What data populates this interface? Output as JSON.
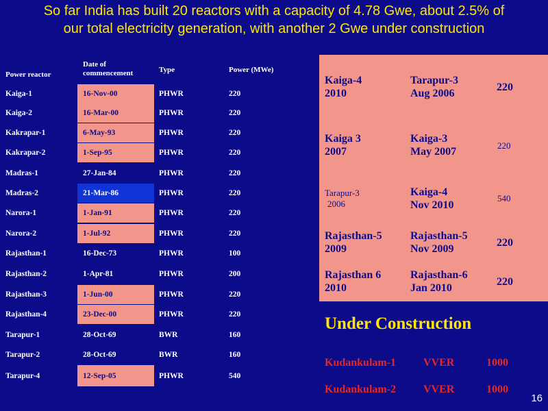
{
  "slide": {
    "title_line1": "So far India has built 20 reactors with a capacity of 4.78 Gwe, about 2.5% of",
    "title_line2": "our total electricity generation,  with another 2 Gwe under construction",
    "page_number": "16"
  },
  "table": {
    "headers": {
      "reactor": "Power reactor",
      "date_line1": "Date of",
      "date_line2": "commencement",
      "type": "Type",
      "power": "Power (MWe)"
    },
    "rows": [
      {
        "name": "Kaiga-1",
        "date": "16-Nov-00",
        "type": "PHWR",
        "power": "220",
        "highlight": "pink"
      },
      {
        "name": "Kaiga-2",
        "date": "16-Mar-00",
        "type": "PHWR",
        "power": "220",
        "highlight": "pink"
      },
      {
        "name": "Kakrapar-1",
        "date": "6-May-93",
        "type": "PHWR",
        "power": "220",
        "highlight": "pink"
      },
      {
        "name": "Kakrapar-2",
        "date": "1-Sep-95",
        "type": "PHWR",
        "power": "220",
        "highlight": "pink"
      },
      {
        "name": "Madras-1",
        "date": "27-Jan-84",
        "type": "PHWR",
        "power": "220",
        "highlight": "none"
      },
      {
        "name": "Madras-2",
        "date": "21-Mar-86",
        "type": "PHWR",
        "power": "220",
        "highlight": "blue"
      },
      {
        "name": "Narora-1",
        "date": "1-Jan-91",
        "type": "PHWR",
        "power": "220",
        "highlight": "pink"
      },
      {
        "name": "Narora-2",
        "date": "1-Jul-92",
        "type": "PHWR",
        "power": "220",
        "highlight": "pink"
      },
      {
        "name": "Rajasthan-1",
        "date": "16-Dec-73",
        "type": "PHWR",
        "power": "100",
        "highlight": "none"
      },
      {
        "name": "Rajasthan-2",
        "date": "1-Apr-81",
        "type": "PHWR",
        "power": "200",
        "highlight": "none"
      },
      {
        "name": "Rajasthan-3",
        "date": "1-Jun-00",
        "type": "PHWR",
        "power": "220",
        "highlight": "pink"
      },
      {
        "name": "Rajasthan-4",
        "date": "23-Dec-00",
        "type": "PHWR",
        "power": "220",
        "highlight": "pink"
      },
      {
        "name": "Tarapur-1",
        "date": "28-Oct-69",
        "type": "BWR",
        "power": "160",
        "highlight": "none"
      },
      {
        "name": "Tarapur-2",
        "date": "28-Oct-69",
        "type": "BWR",
        "power": "160",
        "highlight": "none"
      },
      {
        "name": "Tarapur-4",
        "date": "12-Sep-05",
        "type": "PHWR",
        "power": "540",
        "highlight": "pink"
      }
    ]
  },
  "panel": {
    "rows": [
      {
        "col1_a": "Kaiga-4",
        "col1_b": "2010",
        "col2_a": "Tarapur-3",
        "col2_b": "Aug 2006",
        "power": "220"
      },
      {
        "col1_a": "Kaiga 3",
        "col1_b": "2007",
        "col2_a": "Kaiga-3",
        "col2_b": "May 2007",
        "power": "220"
      },
      {
        "col1_a": "Tarapur-3",
        "col1_b": "2006",
        "col2_a": "Kaiga-4",
        "col2_b": "Nov 2010",
        "power": "540"
      },
      {
        "col1_a": "Rajasthan-5",
        "col1_b": "2009",
        "col2_a": "Rajasthan-5",
        "col2_b": "Nov 2009",
        "power": "220"
      },
      {
        "col1_a": "Rajasthan 6",
        "col1_b": "2010",
        "col2_a": "Rajasthan-6",
        "col2_b": "Jan  2010",
        "power": "220"
      }
    ]
  },
  "under_construction": {
    "title": "Under Construction",
    "items": [
      {
        "name": "Kudankulam-1",
        "type": "VVER",
        "power": "1000"
      },
      {
        "name": "Kudankulam-2",
        "type": "VVER",
        "power": "1000"
      }
    ]
  },
  "colors": {
    "background": "#0c0b8a",
    "title": "#ffe600",
    "highlight_pink": "#f2968c",
    "highlight_blue": "#1034d6",
    "construction_text": "#e8261e"
  }
}
